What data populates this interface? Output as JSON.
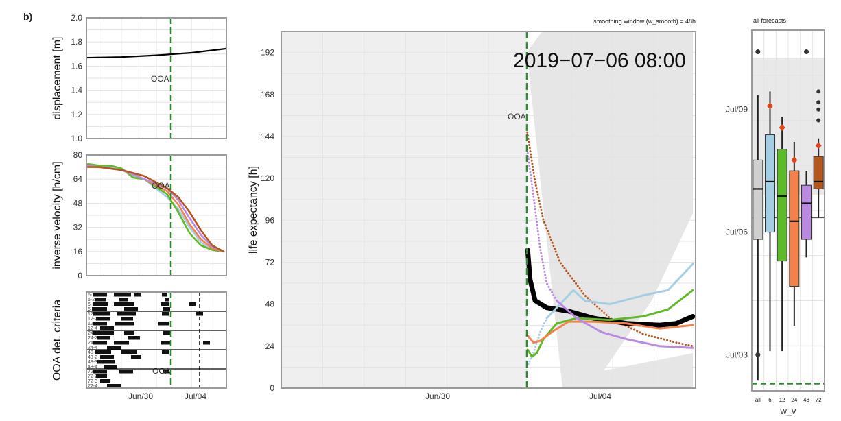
{
  "panel_letter": "b)",
  "colors": {
    "ooa_line": "#2e8b2e",
    "w6": "#a6cee3",
    "w12": "#5dbb2a",
    "w24": "#f4814b",
    "w48": "#b98ae0",
    "w72": "#b5561d",
    "all": "#000000",
    "ci": "#e2e2e2",
    "red_marker": "#e0441b"
  },
  "chart_data": [
    {
      "id": "displacement",
      "type": "line",
      "ylabel": "displacement [m]",
      "ylim": [
        1.0,
        2.0
      ],
      "yticks": [
        "1.0",
        "1.2",
        "1.4",
        "1.6",
        "1.8",
        "2.0"
      ],
      "xticks": [
        "Jun/30",
        "Jul/04"
      ],
      "annotation": "OOA",
      "series": [
        {
          "x": [
            0,
            0.25,
            0.5,
            0.75,
            1.0
          ],
          "values": [
            1.67,
            1.675,
            1.69,
            1.71,
            1.745
          ]
        }
      ]
    },
    {
      "id": "inverse_velocity",
      "type": "line",
      "ylabel": "inverse velocity [h/cm]",
      "ylim": [
        0,
        80
      ],
      "yticks": [
        "0",
        "16",
        "32",
        "48",
        "64",
        "80"
      ],
      "annotation": "OOA",
      "series": [
        {
          "color_key": "w6",
          "values": [
            74,
            73,
            72,
            71,
            66,
            64,
            58,
            52,
            44,
            32,
            22,
            17,
            16
          ]
        },
        {
          "color_key": "w12",
          "values": [
            74,
            73,
            73,
            71,
            65,
            64,
            59,
            54,
            42,
            28,
            20,
            17,
            16
          ]
        },
        {
          "color_key": "w24",
          "values": [
            73,
            72,
            71,
            70,
            67,
            64,
            60,
            56,
            47,
            34,
            24,
            18,
            16
          ]
        },
        {
          "color_key": "w48",
          "values": [
            73,
            72,
            71,
            70,
            67,
            64,
            61,
            58,
            50,
            38,
            27,
            19,
            16
          ]
        },
        {
          "color_key": "w72",
          "values": [
            72,
            72,
            71,
            70,
            68,
            66,
            62,
            58,
            52,
            42,
            30,
            20,
            16
          ]
        }
      ]
    },
    {
      "id": "criteria",
      "type": "heatmap",
      "ylabel": "OOA det. criteria",
      "annotation": "OOA",
      "row_labels": [
        "6-1",
        "6-2",
        "6-3",
        "6-4",
        "12-1",
        "12-2",
        "12-3",
        "12-4",
        "24-1",
        "24-2",
        "24-3",
        "24-4",
        "48-1",
        "48-2",
        "48-3",
        "48-4",
        "72-1",
        "72-2",
        "72-3",
        "72-4"
      ]
    },
    {
      "id": "life_expectancy",
      "type": "line",
      "title": "2019−07−06 08:00",
      "subtitle": "smoothing window (w_smooth) = 48h",
      "ylabel": "life expectancy [h]",
      "ylim": [
        0,
        204
      ],
      "yticks": [
        0,
        24,
        48,
        72,
        96,
        120,
        144,
        168,
        192
      ],
      "xticks": [
        "Jun/30",
        "Jul/04"
      ],
      "annotation": "OOA",
      "series": [
        {
          "color_key": "w72",
          "style": "dotted",
          "points": [
            [
              0,
              148
            ],
            [
              0.05,
              118
            ],
            [
              0.1,
              96
            ],
            [
              0.2,
              72
            ],
            [
              0.35,
              53
            ],
            [
              0.5,
              40
            ],
            [
              0.7,
              31
            ],
            [
              0.9,
              26
            ],
            [
              1,
              24
            ]
          ]
        },
        {
          "color_key": "w48",
          "style": "dotted",
          "points": [
            [
              0,
              138
            ],
            [
              0.04,
              110
            ],
            [
              0.08,
              80
            ],
            [
              0.12,
              60
            ],
            [
              0.18,
              50
            ]
          ]
        },
        {
          "color_key": "w6",
          "style": "dotted",
          "points": [
            [
              0,
              12
            ],
            [
              0.04,
              20
            ],
            [
              0.08,
              32
            ],
            [
              0.12,
              40
            ]
          ]
        },
        {
          "color_key": "all",
          "style": "solid",
          "width": 7,
          "points": [
            [
              0.005,
              79
            ],
            [
              0.02,
              62
            ],
            [
              0.05,
              50
            ],
            [
              0.12,
              46
            ],
            [
              0.25,
              44
            ],
            [
              0.4,
              40
            ],
            [
              0.6,
              37
            ],
            [
              0.8,
              36
            ],
            [
              0.9,
              37
            ],
            [
              1,
              41
            ]
          ]
        },
        {
          "color_key": "w6",
          "style": "solid",
          "points": [
            [
              0.12,
              40
            ],
            [
              0.2,
              48
            ],
            [
              0.28,
              56
            ],
            [
              0.35,
              50
            ],
            [
              0.5,
              48
            ],
            [
              0.7,
              53
            ],
            [
              0.85,
              56
            ],
            [
              1,
              71
            ]
          ]
        },
        {
          "color_key": "w12",
          "style": "solid",
          "points": [
            [
              0.005,
              22
            ],
            [
              0.03,
              18
            ],
            [
              0.06,
              20
            ],
            [
              0.1,
              28
            ],
            [
              0.18,
              37
            ],
            [
              0.3,
              40
            ],
            [
              0.5,
              39
            ],
            [
              0.7,
              41
            ],
            [
              0.85,
              45
            ],
            [
              1,
              56
            ]
          ]
        },
        {
          "color_key": "w24",
          "style": "solid",
          "points": [
            [
              0.005,
              30
            ],
            [
              0.04,
              26
            ],
            [
              0.08,
              27
            ],
            [
              0.15,
              32
            ],
            [
              0.25,
              38
            ],
            [
              0.4,
              38
            ],
            [
              0.6,
              37
            ],
            [
              0.8,
              34
            ],
            [
              1,
              36
            ]
          ]
        },
        {
          "color_key": "w48",
          "style": "solid",
          "points": [
            [
              0.18,
              50
            ],
            [
              0.3,
              40
            ],
            [
              0.45,
              32
            ],
            [
              0.6,
              28
            ],
            [
              0.8,
              24
            ],
            [
              1,
              23
            ]
          ]
        }
      ]
    },
    {
      "id": "all_forecasts",
      "type": "box",
      "title": "all forecasts",
      "xlabel": "w_v",
      "categories": [
        "all",
        "6",
        "12",
        "24",
        "48",
        "72"
      ],
      "yticks": [
        "Jul/03",
        "Jul/06",
        "Jul/09"
      ],
      "boxes": [
        {
          "color_key": "all_box",
          "q1": 0.42,
          "median": 0.56,
          "q3": 0.64,
          "lo": 0.03,
          "hi": 0.82,
          "out_high": 0.94,
          "out_low": 0.1
        },
        {
          "color_key": "w6",
          "q1": 0.44,
          "median": 0.58,
          "q3": 0.71,
          "lo": 0.11,
          "hi": 0.83,
          "diamond": 0.79
        },
        {
          "color_key": "w12",
          "q1": 0.36,
          "median": 0.54,
          "q3": 0.67,
          "lo": 0.11,
          "hi": 0.76,
          "diamond": 0.73
        },
        {
          "color_key": "w24",
          "q1": 0.29,
          "median": 0.47,
          "q3": 0.61,
          "lo": 0.18,
          "hi": 0.69,
          "diamond": 0.64
        },
        {
          "color_key": "w48",
          "q1": 0.42,
          "median": 0.52,
          "q3": 0.57,
          "lo": 0.37,
          "hi": 0.61,
          "out_high": 0.94
        },
        {
          "color_key": "w72",
          "q1": 0.56,
          "median": 0.58,
          "q3": 0.65,
          "lo": 0.48,
          "hi": 0.7,
          "diamond": 0.68,
          "outliers": [
            0.75,
            0.78,
            0.8,
            0.83
          ]
        }
      ]
    }
  ]
}
